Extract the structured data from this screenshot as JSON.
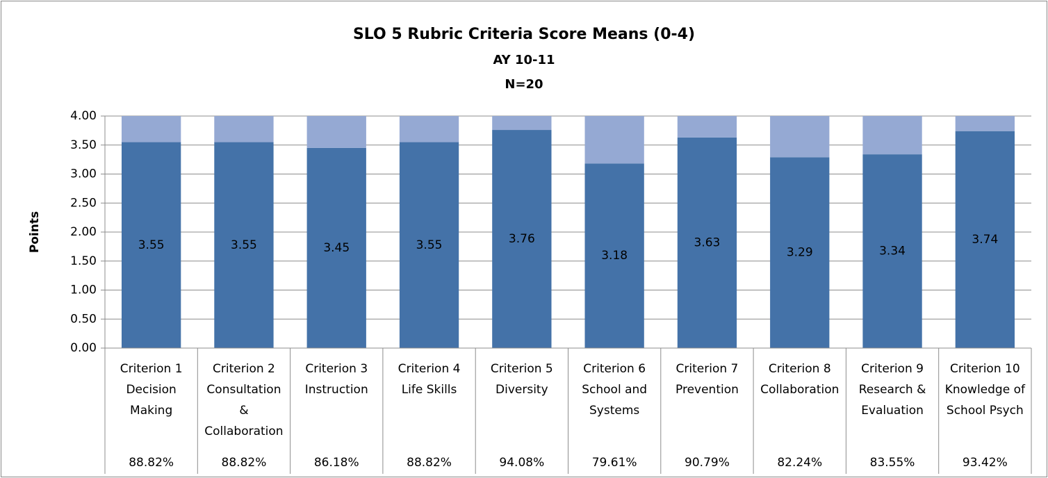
{
  "chart_data": {
    "type": "stacked_bar",
    "title": "SLO 5 Rubric Criteria Score Means (0-4)",
    "subtitle": [
      "AY 10-11",
      "N=20"
    ],
    "y_label": "Points",
    "categories": [
      [
        "Criterion 1",
        "Decision",
        "Making"
      ],
      [
        "Criterion 2",
        "Consultation",
        "&",
        "Collaboration"
      ],
      [
        "Criterion 3",
        "Instruction"
      ],
      [
        "Criterion 4",
        "Life Skills"
      ],
      [
        "Criterion 5",
        "Diversity"
      ],
      [
        "Criterion 6",
        "School and",
        "Systems"
      ],
      [
        "Criterion 7",
        "Prevention"
      ],
      [
        "Criterion 8",
        "Collaboration"
      ],
      [
        "Criterion 9",
        "Research &",
        "Evaluation"
      ],
      [
        "Criterion 10",
        "Knowledge of",
        "School Psych"
      ]
    ],
    "series": [
      {
        "color": "#4472a8",
        "values": [
          3.55,
          3.55,
          3.45,
          3.55,
          3.76,
          3.18,
          3.63,
          3.29,
          3.34,
          3.74
        ],
        "data_labels": true
      },
      {
        "color": "#95a9d3",
        "values": [
          0.45,
          0.45,
          0.55,
          0.45,
          0.24,
          0.82,
          0.37,
          0.71,
          0.66,
          0.26
        ]
      }
    ],
    "table_row": [
      "88.82%",
      "88.82%",
      "86.18%",
      "88.82%",
      "94.08%",
      "79.61%",
      "90.79%",
      "82.24%",
      "83.55%",
      "93.42%"
    ],
    "ylim": [
      0,
      4
    ],
    "yticks": [
      {
        "value": 0,
        "label": "0.00"
      },
      {
        "value": 0.5,
        "label": "0.50"
      },
      {
        "value": 1,
        "label": "1.00"
      },
      {
        "value": 1.5,
        "label": "1.50"
      },
      {
        "value": 2,
        "label": "2.00"
      },
      {
        "value": 2.5,
        "label": "2.50"
      },
      {
        "value": 3,
        "label": "3.00"
      },
      {
        "value": 3.5,
        "label": "3.50"
      },
      {
        "value": 4,
        "label": "4.00"
      }
    ],
    "grid": true
  }
}
